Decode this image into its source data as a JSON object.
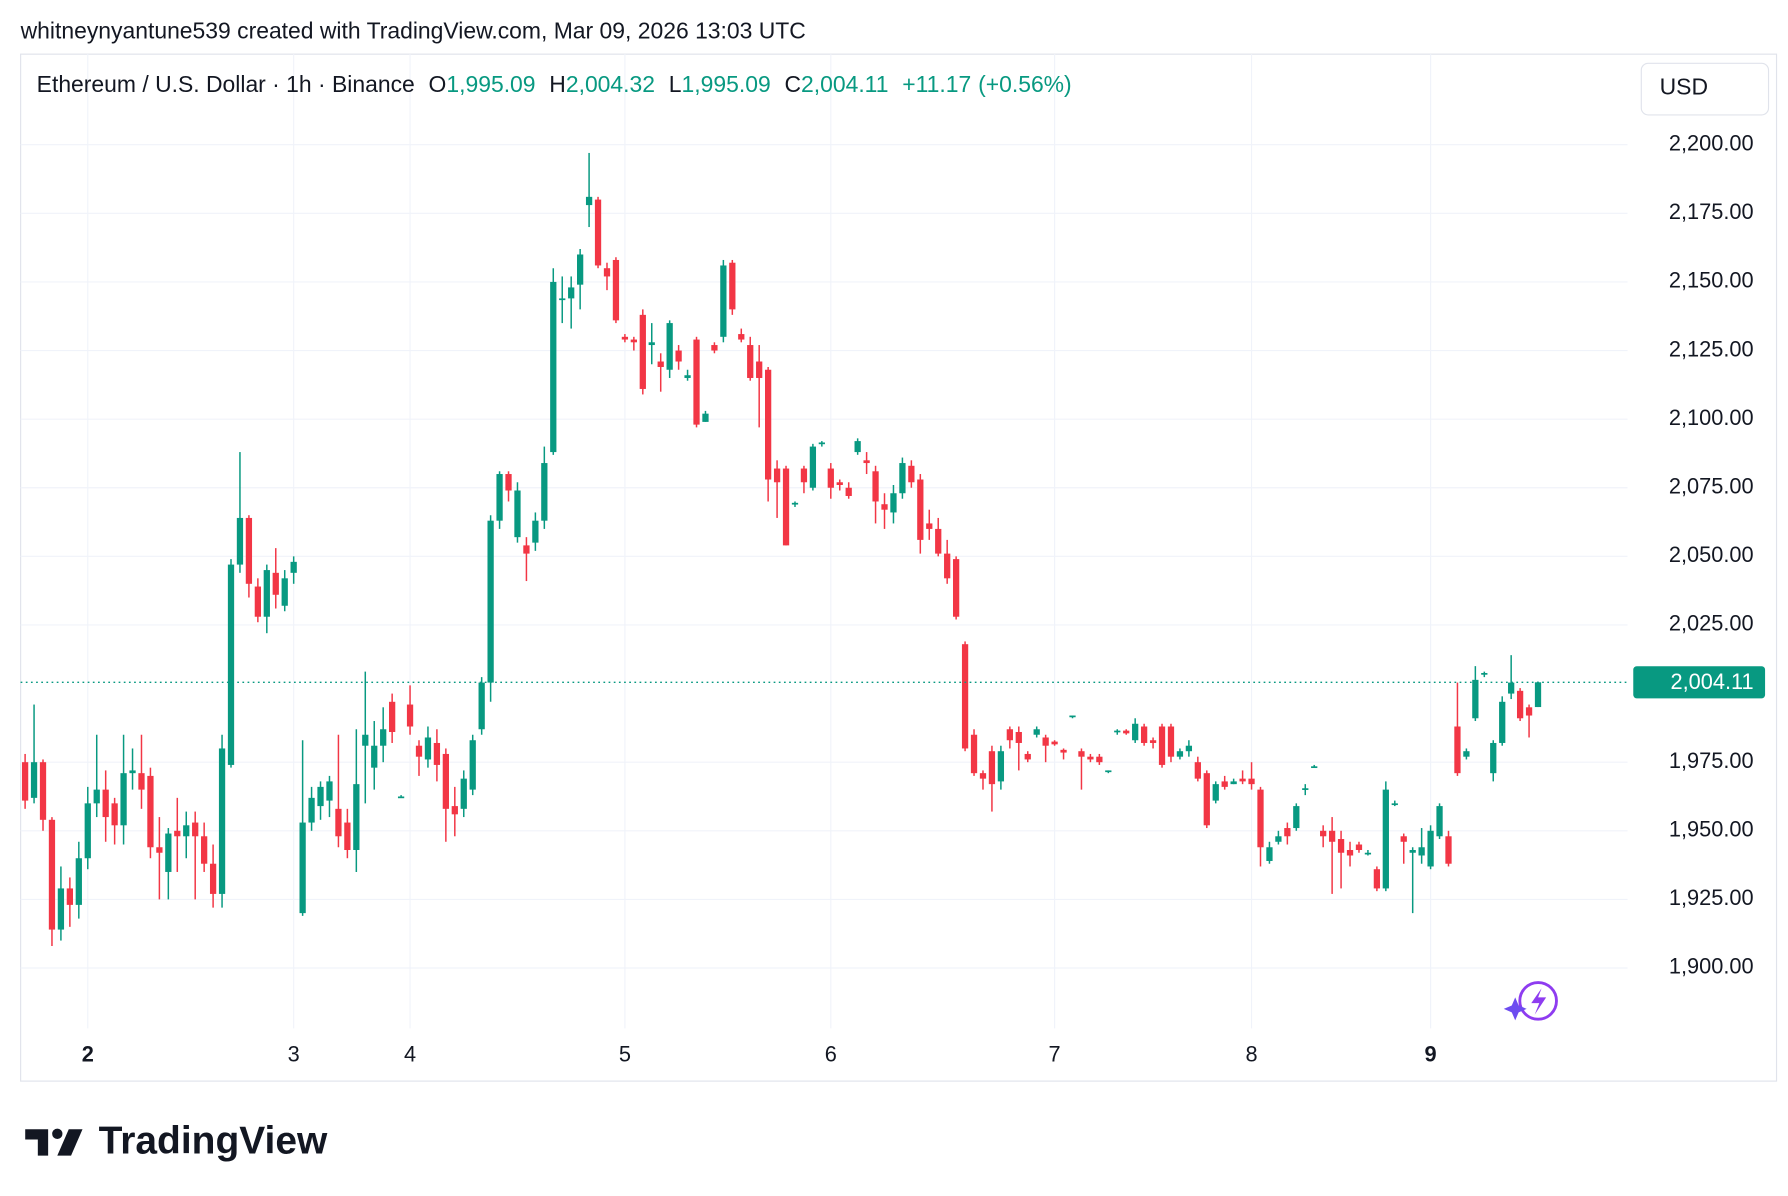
{
  "header": "whitneynyantune539 created with TradingView.com, Mar 09, 2026 13:03 UTC",
  "brand": "TradingView",
  "chart_data": {
    "type": "candlestick",
    "title": "Ethereum / U.S. Dollar · 1h · Binance",
    "currency": "USD",
    "legend_labels": [
      "O",
      "H",
      "L",
      "C"
    ],
    "legend_values": [
      {
        "value": 1995.09,
        "label": "1,995.09"
      },
      {
        "value": 2004.32,
        "label": "2,004.32"
      },
      {
        "value": 1995.09,
        "label": "1,995.09"
      },
      {
        "value": 2004.11,
        "label": "2,004.11"
      }
    ],
    "change": {
      "value": 11.17,
      "label": "+11.17"
    },
    "change_pct": {
      "value": 0.56,
      "label": "(+0.56%)"
    },
    "last_price": {
      "value": 2004.11,
      "label": "2,004.11"
    },
    "up_color": "#089981",
    "down_color": "#f23645",
    "grid": true,
    "xlim": [
      -0.5,
      179
    ],
    "xticks": [
      {
        "value": 7,
        "label": "2",
        "bold": true
      },
      {
        "value": 30,
        "label": "3"
      },
      {
        "value": 43,
        "label": "4"
      },
      {
        "value": 67,
        "label": "5"
      },
      {
        "value": 90,
        "label": "6"
      },
      {
        "value": 115,
        "label": "7"
      },
      {
        "value": 137,
        "label": "8"
      },
      {
        "value": 157,
        "label": "9",
        "bold": true
      }
    ],
    "ylim": [
      1878,
      2233
    ],
    "yticks": [
      {
        "value": 1900,
        "label": "1,900.00"
      },
      {
        "value": 1925,
        "label": "1,925.00"
      },
      {
        "value": 1950,
        "label": "1,950.00"
      },
      {
        "value": 1975,
        "label": "1,975.00"
      },
      {
        "value": 2025,
        "label": "2,025.00"
      },
      {
        "value": 2050,
        "label": "2,050.00"
      },
      {
        "value": 2075,
        "label": "2,075.00"
      },
      {
        "value": 2100,
        "label": "2,100.00"
      },
      {
        "value": 2125,
        "label": "2,125.00"
      },
      {
        "value": 2150,
        "label": "2,150.00"
      },
      {
        "value": 2175,
        "label": "2,175.00"
      },
      {
        "value": 2200,
        "label": "2,200.00"
      }
    ],
    "open": [
      1975,
      1962,
      1975,
      1954,
      1914,
      1929,
      1923,
      1940,
      1960,
      1965,
      1960,
      1952,
      1971,
      1971,
      1970,
      1944,
      1935,
      1950,
      1948,
      1953,
      1948,
      1938,
      1927,
      1974,
      2047,
      2064,
      2039,
      2028,
      2044,
      2032,
      2044,
      1920,
      1953,
      1959,
      1961,
      1958,
      1953,
      1943,
      1981,
      1973,
      1981,
      1997,
      1962.5,
      1996,
      1981,
      1976,
      1982,
      1978,
      1959,
      1958,
      1965,
      1987,
      2004,
      2063,
      2080,
      2057,
      2054,
      2055,
      2063,
      2088,
      2143.5,
      2144,
      2149,
      2178,
      2180,
      2155,
      2158,
      2130,
      2129,
      2138,
      2127,
      2121,
      2118,
      2125,
      2115,
      2129,
      2099,
      2127,
      2130,
      2157,
      2131,
      2127,
      2121,
      2118,
      2082,
      2082,
      2069,
      2082,
      2075,
      2091,
      2082,
      2077,
      2075,
      2088,
      2085,
      2081,
      2069,
      2066,
      2073,
      2083,
      2078,
      2062,
      2060,
      2051,
      2049,
      2018,
      1985,
      1971,
      1979,
      1968,
      1987,
      1986,
      1978,
      1985,
      1984,
      1982.5,
      1979.5,
      1991.5,
      1979,
      1977,
      1977,
      1971.5,
      1986,
      1986.5,
      1983,
      1988,
      1983,
      1988,
      1988,
      1977,
      1979,
      1975,
      1971,
      1961,
      1968,
      1967,
      1969,
      1969,
      1965,
      1939,
      1946,
      1951,
      1951,
      1965,
      1973,
      1950,
      1950,
      1947,
      1943,
      1945,
      1941.5,
      1936,
      1929,
      1959.5,
      1948,
      1942,
      1941,
      1937,
      1948,
      1948,
      1988,
      1977,
      1991,
      2007,
      1971,
      1982,
      2000,
      2001,
      1995,
      1995.09
    ],
    "high": [
      1978,
      1996,
      1976,
      1955,
      1937,
      1933,
      1946,
      1966,
      1985,
      1972,
      1962,
      1985,
      1980,
      1985,
      1973,
      1955,
      1951,
      1962,
      1957,
      1957,
      1953,
      1945,
      1985,
      2049,
      2088,
      2065,
      2042,
      2047,
      2053,
      2045,
      2050,
      1983,
      1966,
      1968,
      1970,
      1985,
      1958,
      1987,
      2008,
      1990,
      1995,
      2000,
      1963,
      2003,
      1983,
      1988,
      1987,
      1980,
      1966,
      1972,
      1985,
      2006,
      2065,
      2081,
      2081,
      2077,
      2057,
      2066,
      2090,
      2155,
      2152,
      2152,
      2162,
      2197,
      2181,
      2157,
      2159,
      2131,
      2130,
      2140,
      2135,
      2124,
      2136,
      2127,
      2118,
      2130,
      2103,
      2128,
      2158,
      2158,
      2133,
      2130,
      2127,
      2119,
      2085,
      2083,
      2070,
      2083,
      2091,
      2092,
      2084,
      2078,
      2077,
      2093,
      2088,
      2083,
      2073,
      2076,
      2086,
      2085,
      2080,
      2067,
      2064,
      2056,
      2050,
      2019,
      1987,
      1972,
      1981,
      1981,
      1988,
      1988,
      1979,
      1988,
      1985,
      1983,
      1980,
      1992,
      1980,
      1978,
      1978,
      1972,
      1987,
      1987,
      1991,
      1989,
      1984,
      1989,
      1989,
      1980,
      1983,
      1977,
      1972,
      1968,
      1970,
      1969,
      1972,
      1975,
      1966,
      1946,
      1950,
      1953,
      1960,
      1967,
      1974,
      1952,
      1955,
      1950,
      1946,
      1946,
      1943,
      1937,
      1968,
      1961,
      1949,
      1944,
      1951,
      1952,
      1960,
      1950,
      2004,
      1980,
      2010,
      2008,
      1983,
      1999,
      2014,
      2002,
      1996,
      2004.32
    ],
    "low": [
      1958,
      1960,
      1950,
      1908,
      1910,
      1915,
      1918,
      1936,
      1955,
      1946,
      1945,
      1945,
      1965,
      1958,
      1940,
      1925,
      1925,
      1935,
      1940,
      1925,
      1935,
      1922,
      1922,
      1973,
      2044,
      2035,
      2026,
      2022,
      2031,
      2030,
      2040,
      1919,
      1950,
      1954,
      1955,
      1944,
      1940,
      1935,
      1960,
      1965,
      1975,
      1982,
      1962,
      1985,
      1970,
      1973,
      1968,
      1946,
      1948,
      1955,
      1963,
      1985,
      1997,
      2060,
      2070,
      2055,
      2041,
      2052,
      2060,
      2087,
      2135,
      2133,
      2140,
      2170,
      2155,
      2147,
      2135,
      2128,
      2125,
      2109,
      2120,
      2110,
      2115,
      2118,
      2114,
      2097,
      2099,
      2124,
      2128,
      2138,
      2128,
      2114,
      2097,
      2070,
      2064,
      2054,
      2068,
      2073,
      2074,
      2090,
      2071,
      2074,
      2071,
      2087,
      2080,
      2062,
      2060,
      2062,
      2071,
      2075,
      2051,
      2056,
      2050,
      2040,
      2027,
      1979,
      1970,
      1965,
      1957,
      1965,
      1980,
      1972,
      1975,
      1984,
      1975,
      1981,
      1976,
      1991,
      1965,
      1975,
      1974,
      1971,
      1985,
      1985,
      1982,
      1981,
      1980,
      1973,
      1975,
      1976,
      1977,
      1968,
      1951,
      1960,
      1965,
      1967,
      1967,
      1965,
      1937,
      1938,
      1945,
      1945,
      1950,
      1963,
      1973,
      1944,
      1927,
      1929,
      1937,
      1942,
      1941,
      1928,
      1928,
      1959,
      1938,
      1920,
      1938,
      1936,
      1947,
      1937,
      1970,
      1976,
      1990,
      2006,
      1968,
      1981,
      1998,
      1990,
      1984,
      1995.09
    ],
    "close": [
      1961,
      1975,
      1954,
      1914,
      1929,
      1923,
      1940,
      1960,
      1965,
      1955,
      1952,
      1971,
      1972,
      1965,
      1944,
      1942,
      1949,
      1948,
      1952,
      1948,
      1938,
      1927,
      1980,
      2047,
      2064,
      2040,
      2028,
      2045,
      2036,
      2042,
      2048,
      1953,
      1962,
      1966,
      1968,
      1948,
      1943,
      1967,
      1985,
      1981,
      1987,
      1986,
      1962.5,
      1988,
      1977,
      1984,
      1974,
      1958,
      1956,
      1969,
      1983,
      2004,
      2063,
      2080,
      2074,
      2074,
      2051,
      2063,
      2084,
      2150,
      2144,
      2148,
      2160,
      2181,
      2156,
      2152,
      2136,
      2129,
      2128,
      2111,
      2128,
      2119,
      2135,
      2121,
      2116,
      2098,
      2102,
      2125,
      2156,
      2140,
      2129,
      2115,
      2115,
      2078,
      2077,
      2054,
      2069.5,
      2077,
      2090,
      2091.5,
      2075,
      2076,
      2072,
      2092,
      2084,
      2070,
      2067,
      2073,
      2084,
      2077,
      2056,
      2060,
      2051,
      2042,
      2028,
      1980,
      1971,
      1969,
      1967,
      1979,
      1983,
      1982,
      1976,
      1987,
      1981,
      1981.5,
      1978.5,
      1992,
      1977,
      1976,
      1975,
      1972,
      1986.5,
      1985.5,
      1989,
      1982,
      1982,
      1974,
      1977,
      1979,
      1981,
      1969,
      1952,
      1967,
      1966,
      1968,
      1968,
      1967,
      1944,
      1944,
      1948,
      1948,
      1959,
      1965.5,
      1973.5,
      1948,
      1946,
      1942,
      1941,
      1943,
      1942,
      1929,
      1965,
      1960,
      1946,
      1943,
      1944,
      1950,
      1959,
      1938,
      1971,
      1979,
      2005,
      2007.5,
      1982,
      1997,
      2004,
      1991,
      1992,
      2004.11
    ]
  }
}
